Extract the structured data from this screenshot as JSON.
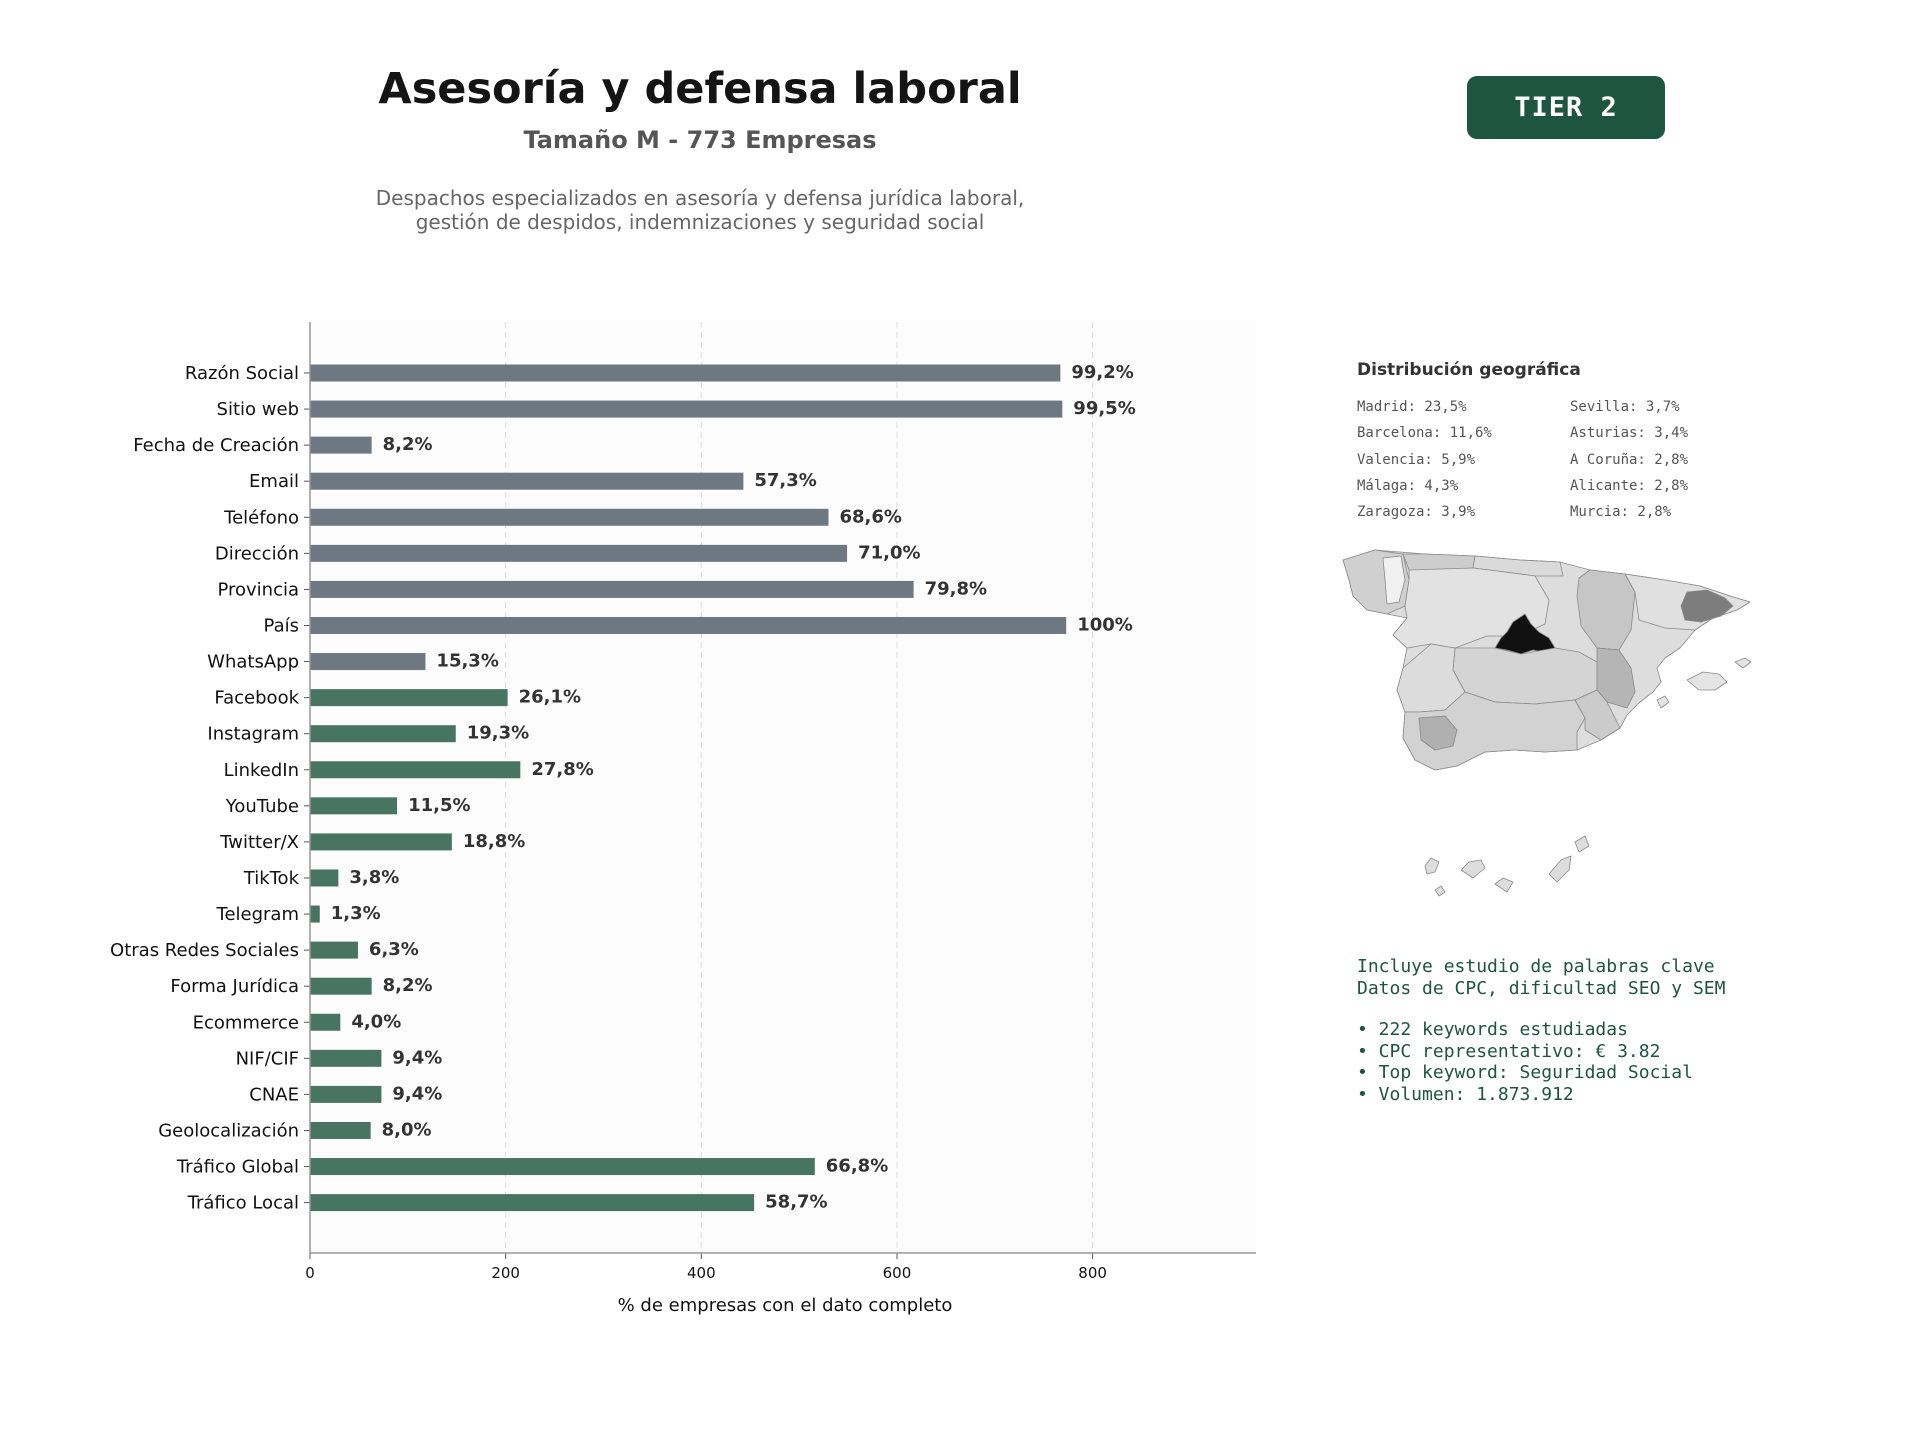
{
  "header": {
    "title": "Asesoría y defensa laboral",
    "subtitle": "Tamaño M - 773 Empresas",
    "description_line1": "Despachos especializados en asesoría y defensa jurídica laboral,",
    "description_line2": "gestión de despidos, indemnizaciones y seguridad social",
    "tier_badge": "TIER 2"
  },
  "chart_data": {
    "type": "bar",
    "orientation": "horizontal",
    "xlabel": "% de empresas con el dato completo",
    "xlim": [
      0,
      967
    ],
    "xticks": [
      0,
      200,
      400,
      600,
      800
    ],
    "grid": "vertical dashed",
    "total_companies": 773,
    "categories": [
      "Razón Social",
      "Sitio web",
      "Fecha de Creación",
      "Email",
      "Teléfono",
      "Dirección",
      "Provincia",
      "País",
      "WhatsApp",
      "Facebook",
      "Instagram",
      "LinkedIn",
      "YouTube",
      "Twitter/X",
      "TikTok",
      "Telegram",
      "Otras Redes Sociales",
      "Forma Jurídica",
      "Ecommerce",
      "NIF/CIF",
      "CNAE",
      "Geolocalización",
      "Tráfico Global",
      "Tráfico Local"
    ],
    "percent_labels": [
      "99,2%",
      "99,5%",
      "8,2%",
      "57,3%",
      "68,6%",
      "71,0%",
      "79,8%",
      "100%",
      "15,3%",
      "26,1%",
      "19,3%",
      "27,8%",
      "11,5%",
      "18,8%",
      "3,8%",
      "1,3%",
      "6,3%",
      "8,2%",
      "4,0%",
      "9,4%",
      "9,4%",
      "8,0%",
      "66,8%",
      "58,7%"
    ],
    "values": [
      767,
      769,
      63,
      443,
      530,
      549,
      617,
      773,
      118,
      202,
      149,
      215,
      89,
      145,
      29,
      10,
      49,
      63,
      31,
      73,
      73,
      62,
      516,
      454
    ],
    "groups": [
      "basic",
      "basic",
      "basic",
      "basic",
      "basic",
      "basic",
      "basic",
      "basic",
      "basic",
      "social",
      "social",
      "social",
      "social",
      "social",
      "social",
      "social",
      "social",
      "extended",
      "extended",
      "extended",
      "extended",
      "extended",
      "extended",
      "extended"
    ],
    "colors": {
      "basic": "#6e7883",
      "social": "#487561",
      "extended": "#487561"
    }
  },
  "geo": {
    "title": "Distribución geográfica",
    "col1": [
      "Madrid: 23,5%",
      "Barcelona: 11,6%",
      "Valencia: 5,9%",
      "Málaga: 4,3%",
      "Zaragoza: 3,9%"
    ],
    "col2": [
      "Sevilla: 3,7%",
      "Asturias: 3,4%",
      "A Coruña: 2,8%",
      "Alicante: 2,8%",
      "Murcia: 2,8%"
    ]
  },
  "keywords": {
    "line1": "Incluye estudio de palabras clave",
    "line2": "Datos de CPC, dificultad SEO y SEM",
    "bullets": [
      "• 222 keywords estudiadas",
      "• CPC representativo: € 3.82",
      "• Top keyword: Seguridad Social",
      "• Volumen: 1.873.912"
    ]
  }
}
